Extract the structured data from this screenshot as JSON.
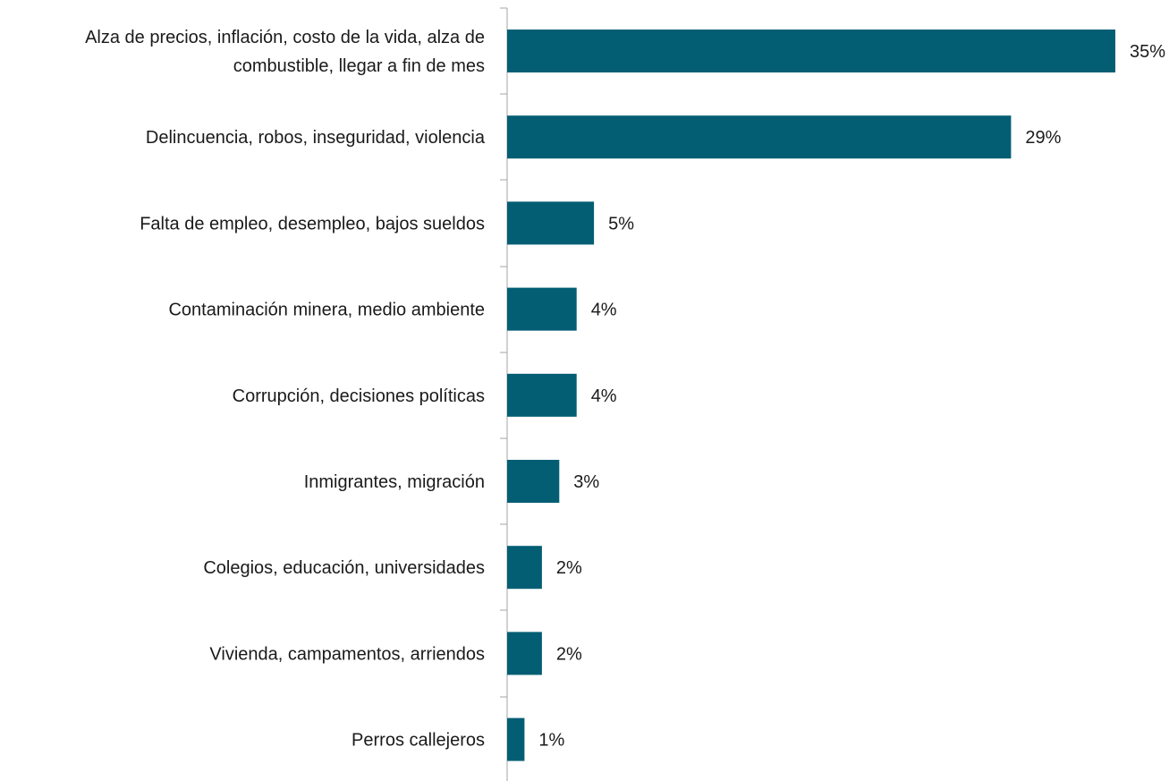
{
  "chart_data": {
    "type": "bar",
    "orientation": "horizontal",
    "categories": [
      [
        "Alza de precios, inflación, costo de la vida, alza de",
        "combustible, llegar a fin de mes"
      ],
      [
        "Delincuencia, robos, inseguridad, violencia"
      ],
      [
        "Falta de empleo, desempleo, bajos sueldos"
      ],
      [
        "Contaminación minera, medio ambiente"
      ],
      [
        "Corrupción, decisiones políticas"
      ],
      [
        "Inmigrantes, migración"
      ],
      [
        "Colegios, educación, universidades"
      ],
      [
        "Vivienda, campamentos, arriendos"
      ],
      [
        "Perros callejeros"
      ]
    ],
    "values": [
      35,
      29,
      5,
      4,
      4,
      3,
      2,
      2,
      1
    ],
    "value_labels": [
      "35%",
      "29%",
      "5%",
      "4%",
      "4%",
      "3%",
      "2%",
      "2%",
      "1%"
    ],
    "bar_color": "#035e74",
    "title": "",
    "xlabel": "",
    "ylabel": "",
    "legend": "none",
    "grid": false
  }
}
